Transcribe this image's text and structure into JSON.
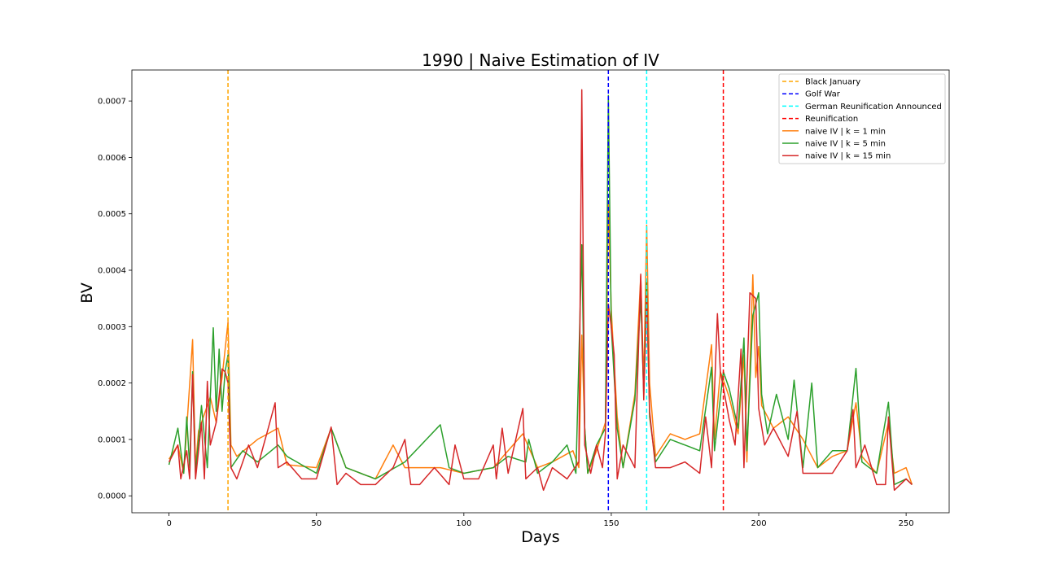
{
  "chart_data": {
    "type": "line",
    "title": "1990 | Naive Estimation of IV",
    "xlabel": "Days",
    "ylabel": "BV",
    "xlim": [
      -12.6,
      264.6
    ],
    "ylim": [
      -3e-05,
      0.000755
    ],
    "xticks": [
      0,
      50,
      100,
      150,
      200,
      250
    ],
    "yticks": [
      0,
      0.0001,
      0.0002,
      0.0003,
      0.0004,
      0.0005,
      0.0006,
      0.0007
    ],
    "ytick_labels": [
      "0.0000",
      "0.0001",
      "0.0002",
      "0.0003",
      "0.0004",
      "0.0005",
      "0.0006",
      "0.0007"
    ],
    "grid": false,
    "legend_position": "top-right",
    "events": [
      {
        "name": "Black January",
        "x": 20,
        "color": "#ffa500"
      },
      {
        "name": "Golf War",
        "x": 149,
        "color": "#0000ff"
      },
      {
        "name": "German Reunification Announced",
        "x": 162,
        "color": "#00ffff"
      },
      {
        "name": "Reunification",
        "x": 188,
        "color": "#ff0000"
      }
    ],
    "series": [
      {
        "name": "naive IV | k = 1 min",
        "color": "#ff7f0e",
        "key_points": [
          [
            0,
            6.5e-05
          ],
          [
            3,
            9e-05
          ],
          [
            5,
            4e-05
          ],
          [
            8,
            0.000277
          ],
          [
            9,
            5e-05
          ],
          [
            10,
            0.000115
          ],
          [
            14,
            0.000175
          ],
          [
            16,
            0.00013
          ],
          [
            18,
            0.00021
          ],
          [
            20,
            0.000308
          ],
          [
            21,
            9e-05
          ],
          [
            23,
            7e-05
          ],
          [
            30,
            0.0001
          ],
          [
            37,
            0.00012
          ],
          [
            40,
            5.5e-05
          ],
          [
            50,
            5e-05
          ],
          [
            55,
            0.00012
          ],
          [
            60,
            5e-05
          ],
          [
            70,
            3e-05
          ],
          [
            76,
            9e-05
          ],
          [
            80,
            5e-05
          ],
          [
            92,
            5e-05
          ],
          [
            100,
            4e-05
          ],
          [
            110,
            5e-05
          ],
          [
            120,
            0.00011
          ],
          [
            125,
            5e-05
          ],
          [
            130,
            6e-05
          ],
          [
            137,
            8e-05
          ],
          [
            139,
            5e-05
          ],
          [
            140,
            0.000285
          ],
          [
            141,
            0.00012
          ],
          [
            142,
            4e-05
          ],
          [
            145,
            8e-05
          ],
          [
            148,
            0.00013
          ],
          [
            149,
            0.00052
          ],
          [
            150,
            0.00033
          ],
          [
            152,
            0.00014
          ],
          [
            154,
            5e-05
          ],
          [
            158,
            0.00018
          ],
          [
            160,
            0.00039
          ],
          [
            161,
            0.0002
          ],
          [
            162,
            0.00048
          ],
          [
            163,
            0.0002
          ],
          [
            165,
            7e-05
          ],
          [
            170,
            0.00011
          ],
          [
            175,
            0.0001
          ],
          [
            180,
            0.00011
          ],
          [
            184,
            0.000268
          ],
          [
            185,
            0.0001
          ],
          [
            187,
            0.00022
          ],
          [
            190,
            0.000175
          ],
          [
            193,
            0.00011
          ],
          [
            195,
            0.00025
          ],
          [
            196,
            6e-05
          ],
          [
            198,
            0.000392
          ],
          [
            199,
            0.00021
          ],
          [
            200,
            0.000265
          ],
          [
            201,
            0.00016
          ],
          [
            205,
            0.00012
          ],
          [
            210,
            0.00014
          ],
          [
            215,
            0.0001
          ],
          [
            220,
            5e-05
          ],
          [
            225,
            7e-05
          ],
          [
            230,
            8e-05
          ],
          [
            233,
            0.000165
          ],
          [
            235,
            7e-05
          ],
          [
            240,
            4e-05
          ],
          [
            244,
            0.00013
          ],
          [
            246,
            4e-05
          ],
          [
            250,
            5e-05
          ],
          [
            252,
            2e-05
          ]
        ]
      },
      {
        "name": "naive IV | k = 5 min",
        "color": "#2ca02c",
        "key_points": [
          [
            0,
            5.5e-05
          ],
          [
            3,
            0.00012
          ],
          [
            5,
            4e-05
          ],
          [
            6,
            0.00014
          ],
          [
            7,
            5e-05
          ],
          [
            8,
            0.00022
          ],
          [
            9,
            4e-05
          ],
          [
            11,
            0.00016
          ],
          [
            13,
            5e-05
          ],
          [
            15,
            0.000298
          ],
          [
            16,
            0.00015
          ],
          [
            17,
            0.00026
          ],
          [
            18,
            0.00015
          ],
          [
            19,
            0.00022
          ],
          [
            20,
            0.00025
          ],
          [
            21,
            5e-05
          ],
          [
            25,
            8e-05
          ],
          [
            30,
            6e-05
          ],
          [
            37,
            9e-05
          ],
          [
            40,
            7e-05
          ],
          [
            50,
            4e-05
          ],
          [
            55,
            0.00012
          ],
          [
            60,
            5e-05
          ],
          [
            70,
            3e-05
          ],
          [
            80,
            6e-05
          ],
          [
            92,
            0.000126
          ],
          [
            95,
            5e-05
          ],
          [
            100,
            4e-05
          ],
          [
            110,
            5e-05
          ],
          [
            115,
            7e-05
          ],
          [
            121,
            6e-05
          ],
          [
            122,
            0.0001
          ],
          [
            125,
            4e-05
          ],
          [
            130,
            6e-05
          ],
          [
            135,
            9e-05
          ],
          [
            138,
            4e-05
          ],
          [
            140,
            0.000445
          ],
          [
            141,
            0.00012
          ],
          [
            142,
            4e-05
          ],
          [
            145,
            9e-05
          ],
          [
            148,
            0.00012
          ],
          [
            149,
            0.00071
          ],
          [
            150,
            0.0003
          ],
          [
            152,
            0.00012
          ],
          [
            154,
            5e-05
          ],
          [
            158,
            0.00017
          ],
          [
            160,
            0.00035
          ],
          [
            161,
            0.00018
          ],
          [
            162,
            0.00038
          ],
          [
            163,
            0.00014
          ],
          [
            165,
            6e-05
          ],
          [
            170,
            0.0001
          ],
          [
            180,
            8e-05
          ],
          [
            184,
            0.000228
          ],
          [
            185,
            8e-05
          ],
          [
            188,
            0.00022
          ],
          [
            190,
            0.00019
          ],
          [
            193,
            0.00012
          ],
          [
            195,
            0.00028
          ],
          [
            196,
            8e-05
          ],
          [
            198,
            0.00032
          ],
          [
            200,
            0.00036
          ],
          [
            201,
            0.00018
          ],
          [
            203,
            0.00011
          ],
          [
            206,
            0.00018
          ],
          [
            210,
            0.0001
          ],
          [
            212,
            0.000205
          ],
          [
            215,
            5e-05
          ],
          [
            218,
            0.0002
          ],
          [
            220,
            5e-05
          ],
          [
            225,
            8e-05
          ],
          [
            230,
            8e-05
          ],
          [
            233,
            0.000226
          ],
          [
            235,
            6e-05
          ],
          [
            240,
            4e-05
          ],
          [
            244,
            0.000166
          ],
          [
            246,
            2e-05
          ],
          [
            250,
            3e-05
          ],
          [
            252,
            2e-05
          ]
        ]
      },
      {
        "name": "naive IV | k = 15 min",
        "color": "#d62728",
        "key_points": [
          [
            0,
            6e-05
          ],
          [
            3,
            9e-05
          ],
          [
            4,
            3e-05
          ],
          [
            6,
            8e-05
          ],
          [
            7,
            3e-05
          ],
          [
            8,
            0.000215
          ],
          [
            9,
            3e-05
          ],
          [
            11,
            0.00013
          ],
          [
            12,
            3e-05
          ],
          [
            13,
            0.000203
          ],
          [
            14,
            9e-05
          ],
          [
            16,
            0.00013
          ],
          [
            18,
            0.000225
          ],
          [
            19,
            0.00022
          ],
          [
            20,
            0.0002
          ],
          [
            21,
            5e-05
          ],
          [
            23,
            3e-05
          ],
          [
            27,
            9e-05
          ],
          [
            30,
            5e-05
          ],
          [
            36,
            0.000165
          ],
          [
            37,
            5e-05
          ],
          [
            40,
            6e-05
          ],
          [
            45,
            3e-05
          ],
          [
            50,
            3e-05
          ],
          [
            55,
            0.000122
          ],
          [
            57,
            2e-05
          ],
          [
            60,
            4e-05
          ],
          [
            65,
            2e-05
          ],
          [
            70,
            2e-05
          ],
          [
            76,
            5e-05
          ],
          [
            80,
            0.0001
          ],
          [
            82,
            2e-05
          ],
          [
            85,
            2e-05
          ],
          [
            90,
            5e-05
          ],
          [
            95,
            2e-05
          ],
          [
            97,
            9e-05
          ],
          [
            100,
            3e-05
          ],
          [
            105,
            3e-05
          ],
          [
            110,
            9e-05
          ],
          [
            111,
            3e-05
          ],
          [
            113,
            0.00012
          ],
          [
            115,
            4e-05
          ],
          [
            120,
            0.000155
          ],
          [
            121,
            3e-05
          ],
          [
            125,
            5e-05
          ],
          [
            127,
            1e-05
          ],
          [
            130,
            5e-05
          ],
          [
            135,
            3e-05
          ],
          [
            139,
            6e-05
          ],
          [
            140,
            0.00072
          ],
          [
            141,
            9e-05
          ],
          [
            143,
            4e-05
          ],
          [
            145,
            9e-05
          ],
          [
            147,
            5e-05
          ],
          [
            148,
            0.00011
          ],
          [
            149,
            0.00034
          ],
          [
            150,
            0.0003
          ],
          [
            151,
            0.00025
          ],
          [
            152,
            3e-05
          ],
          [
            154,
            9e-05
          ],
          [
            158,
            5e-05
          ],
          [
            160,
            0.000393
          ],
          [
            161,
            0.00017
          ],
          [
            162,
            0.00036
          ],
          [
            163,
            0.00015
          ],
          [
            165,
            5e-05
          ],
          [
            170,
            5e-05
          ],
          [
            175,
            6e-05
          ],
          [
            180,
            4e-05
          ],
          [
            182,
            0.00014
          ],
          [
            184,
            5e-05
          ],
          [
            186,
            0.000323
          ],
          [
            187,
            0.00022
          ],
          [
            190,
            0.000135
          ],
          [
            192,
            9e-05
          ],
          [
            194,
            0.00026
          ],
          [
            195,
            5e-05
          ],
          [
            197,
            0.00036
          ],
          [
            199,
            0.00035
          ],
          [
            200,
            0.000155
          ],
          [
            202,
            9e-05
          ],
          [
            205,
            0.00012
          ],
          [
            210,
            7e-05
          ],
          [
            213,
            0.00015
          ],
          [
            215,
            4e-05
          ],
          [
            220,
            4e-05
          ],
          [
            225,
            4e-05
          ],
          [
            230,
            8e-05
          ],
          [
            232,
            0.000153
          ],
          [
            233,
            5e-05
          ],
          [
            236,
            9e-05
          ],
          [
            240,
            2e-05
          ],
          [
            243,
            2e-05
          ],
          [
            244,
            0.00014
          ],
          [
            246,
            1e-05
          ],
          [
            250,
            3e-05
          ],
          [
            252,
            2e-05
          ]
        ]
      }
    ]
  }
}
